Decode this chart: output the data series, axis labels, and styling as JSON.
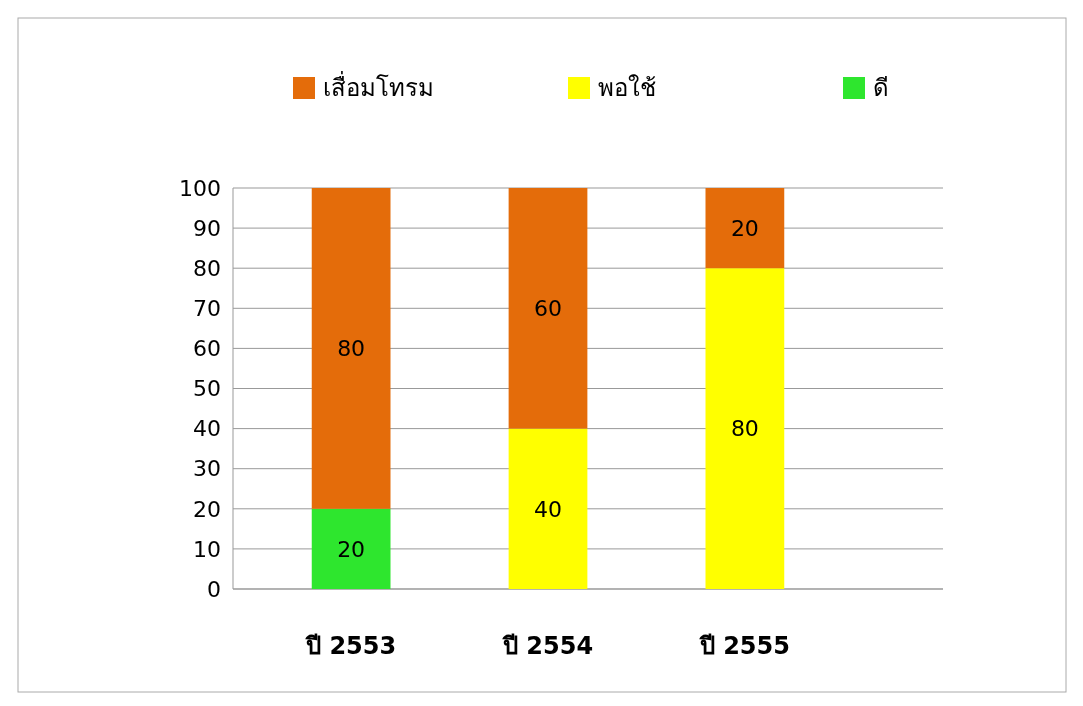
{
  "chart_data": {
    "type": "bar",
    "stacked": true,
    "categories": [
      "ปี 2553",
      "ปี 2554",
      "ปี 2555"
    ],
    "series": [
      {
        "name": "ดี",
        "color": "#2ee62e",
        "values": [
          20,
          null,
          null
        ]
      },
      {
        "name": "พอใช้",
        "color": "#ffff00",
        "values": [
          null,
          40,
          80
        ]
      },
      {
        "name": "เสื่อมโทรม",
        "color": "#e46c0a",
        "values": [
          80,
          60,
          20
        ]
      }
    ],
    "ylim": [
      0,
      100
    ],
    "yticks": [
      0,
      10,
      20,
      30,
      40,
      50,
      60,
      70,
      80,
      90,
      100
    ],
    "grid": "y",
    "legend": "top",
    "data_labels": true
  }
}
